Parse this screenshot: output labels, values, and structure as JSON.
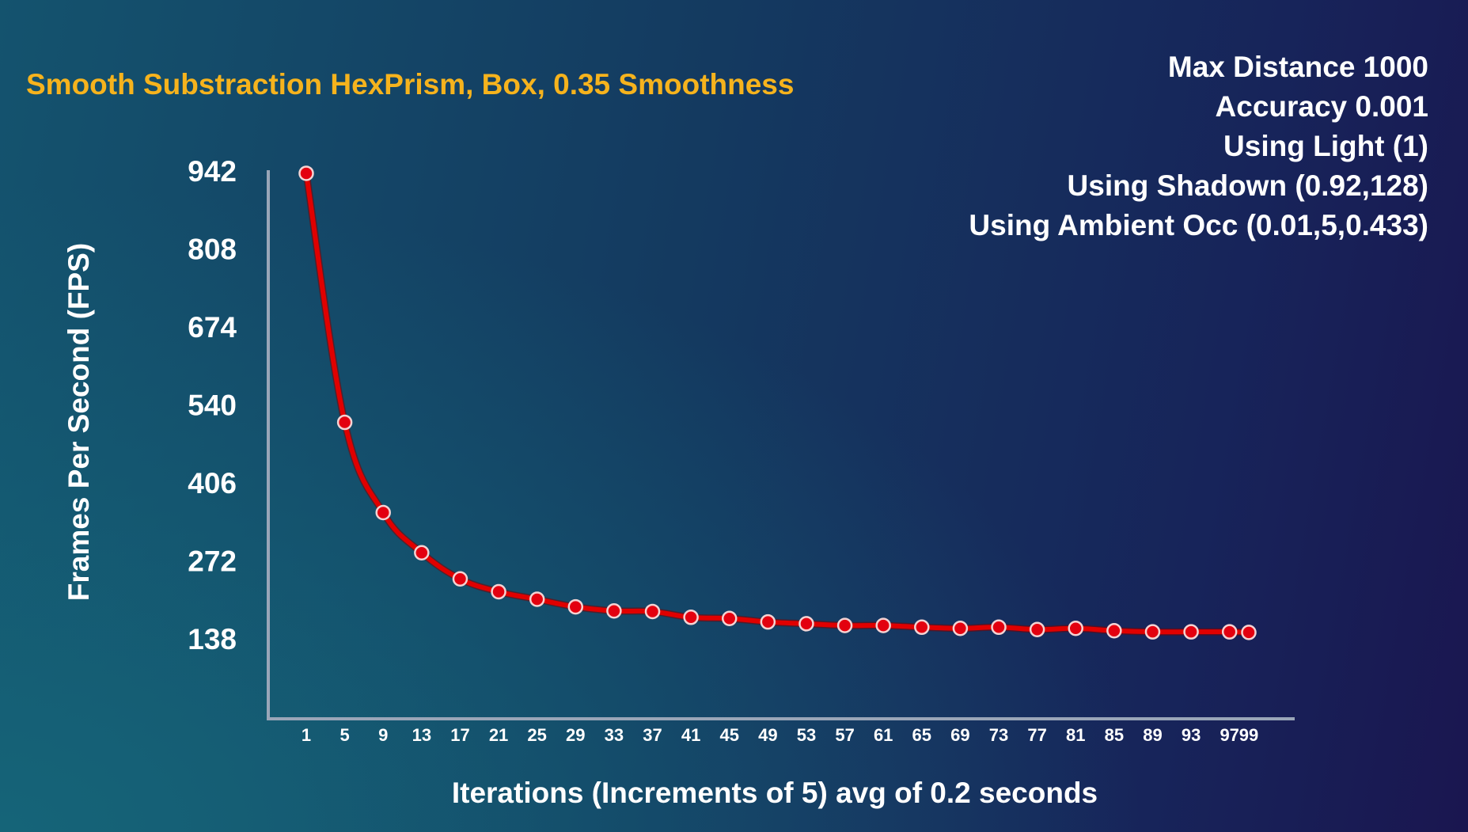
{
  "settings": {
    "lines": [
      "Max Distance 1000",
      "Accuracy 0.001",
      "Using Light (1)",
      "Using Shadown (0.92,128)",
      "Using Ambient Occ (0.01,5,0.433)"
    ]
  },
  "colors": {
    "title": "#f6b31d",
    "line": "#e00000",
    "marker": "#e3000f",
    "marker_stroke": "#f4d3d3",
    "axis": "#9aa6b8",
    "text": "#ffffff"
  },
  "chart_data": {
    "type": "line",
    "title": "Smooth Substraction HexPrism, Box, 0.35 Smoothness",
    "xlabel": "Iterations (Increments of 5) avg of 0.2 seconds",
    "ylabel": "Frames Per Second (FPS)",
    "y_ticks": [
      942,
      808,
      674,
      540,
      406,
      272,
      138
    ],
    "ylim": [
      0,
      942
    ],
    "grid": false,
    "categories": [
      "1",
      "5",
      "9",
      "13",
      "17",
      "21",
      "25",
      "29",
      "33",
      "37",
      "41",
      "45",
      "49",
      "53",
      "57",
      "61",
      "65",
      "69",
      "73",
      "77",
      "81",
      "85",
      "89",
      "93",
      "97",
      "99"
    ],
    "series": [
      {
        "values": [
          938,
          510,
          355,
          286,
          241,
          219,
          206,
          193,
          186,
          185,
          175,
          173,
          167,
          164,
          161,
          161,
          158,
          156,
          158,
          154,
          156,
          152,
          150,
          150,
          150,
          149
        ]
      }
    ]
  }
}
